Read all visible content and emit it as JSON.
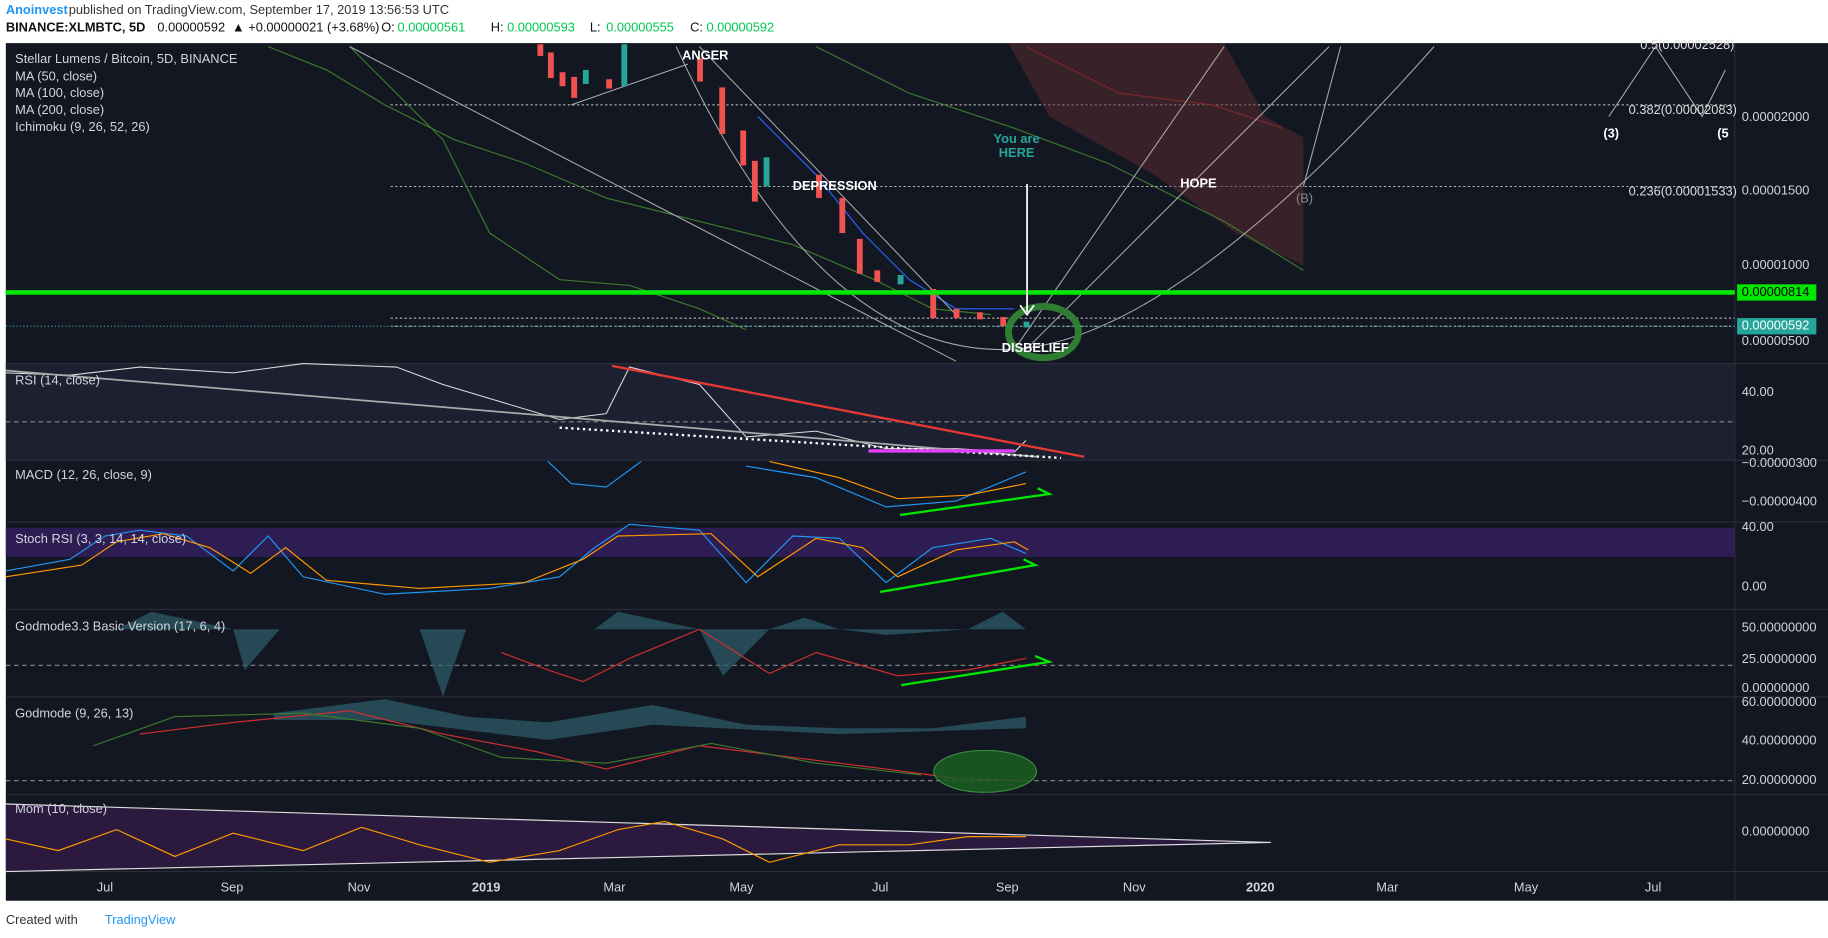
{
  "header": {
    "author": "Anoinvest",
    "published": "published on TradingView.com, September 17, 2019 13:56:53 UTC",
    "symbol": "BINANCE:XLMBTC, 5D",
    "last": "0.00000592",
    "change": "▲ +0.00000021 (+3.68%)",
    "ohlc": [
      {
        "label": "O:",
        "value": "0.00000561"
      },
      {
        "label": "H:",
        "value": "0.00000593"
      },
      {
        "label": "L:",
        "value": "0.00000555"
      },
      {
        "label": "C:",
        "value": "0.00000592"
      }
    ]
  },
  "panes": [
    {
      "title": "Stellar Lumens / Bitcoin, 5D, BINANCE",
      "legend": [
        "MA (50, close)",
        "MA (100, close)",
        "MA (200, close)",
        "Ichimoku (9, 26, 52, 26)"
      ],
      "yticks": [
        "0.00002000",
        "0.00001500",
        "0.00001000",
        "0.00000500"
      ]
    },
    {
      "title": "RSI (14, close)",
      "yticks": [
        "40.00",
        "20.00"
      ]
    },
    {
      "title": "MACD (12, 26, close, 9)",
      "yticks": [
        "−0.00000300",
        "−0.00000400"
      ]
    },
    {
      "title": "Stoch RSI (3, 3, 14, 14, close)",
      "yticks": [
        "40.00",
        "0.00"
      ]
    },
    {
      "title": "Godmode3.3 Basic Version (17, 6, 4)",
      "yticks": [
        "50.00000000",
        "25.00000000",
        "0.00000000"
      ]
    },
    {
      "title": "Godmode (9, 26, 13)",
      "yticks": [
        "60.00000000",
        "40.00000000",
        "20.00000000"
      ]
    },
    {
      "title": "Mom (10, close)",
      "yticks": [
        "0.00000000"
      ]
    }
  ],
  "price_tags": [
    "0.00000814",
    "0.00000592"
  ],
  "fib_levels": [
    "0.5(0.00002528)",
    "0.382(0.00002083)",
    "0.236(0.00001533)"
  ],
  "annotations": [
    "ANGER",
    "DEPRESSION",
    "You are",
    "HERE",
    "HOPE",
    "DISBELIEF",
    "(B)",
    "(3)",
    "(5"
  ],
  "time_axis": [
    "Jul",
    "Sep",
    "Nov",
    "2019",
    "Mar",
    "May",
    "Jul",
    "Sep",
    "Nov",
    "2020",
    "Mar",
    "May",
    "Jul"
  ],
  "footer": {
    "created": "Created with",
    "brand": "TradingView"
  }
}
